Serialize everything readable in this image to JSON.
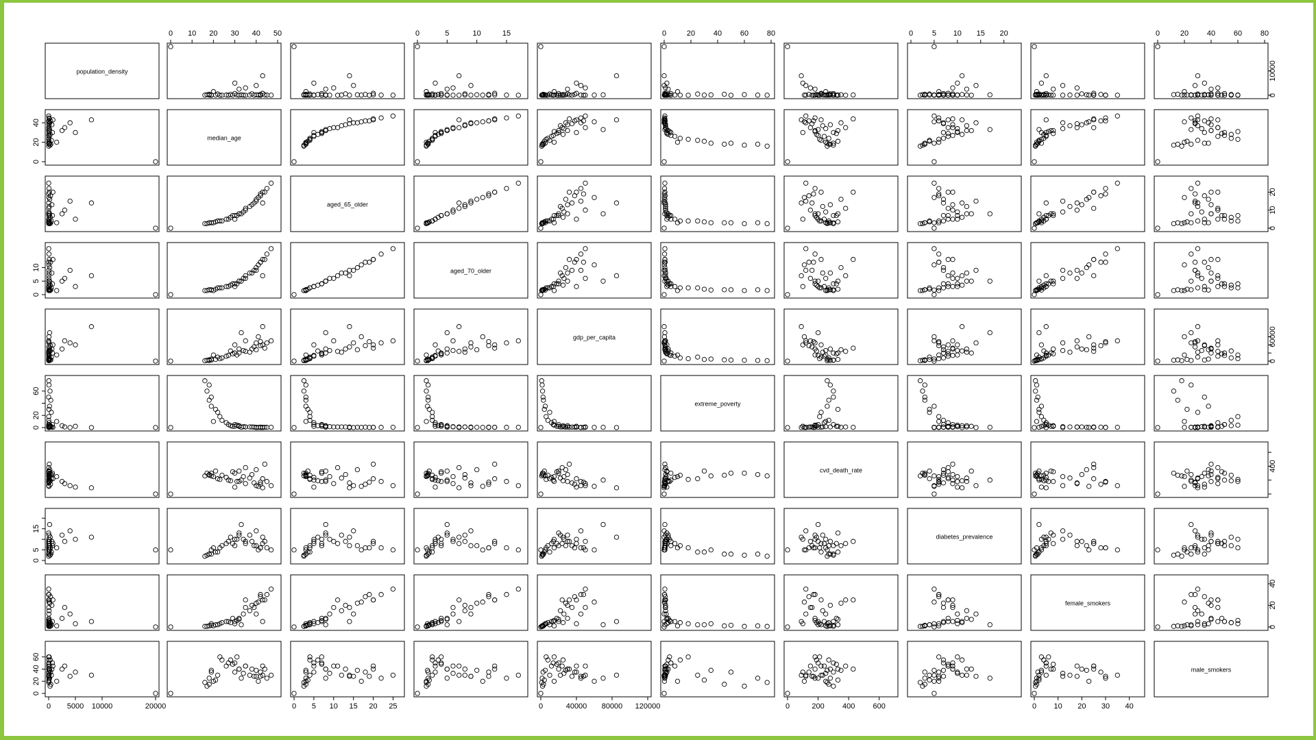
{
  "chart_data": {
    "type": "scatter",
    "variables": [
      {
        "name": "population_density",
        "label": "population_density",
        "range": [
          0,
          20000
        ],
        "ticks": [
          0,
          5000,
          10000,
          20000
        ],
        "tick_labels": [
          "0",
          "5000",
          "10000",
          "20000"
        ],
        "ticks_right": [
          0,
          10000
        ],
        "tick_labels_right": [
          "0",
          "10000"
        ],
        "ticks_left": [],
        "tick_labels_left": []
      },
      {
        "name": "median_age",
        "label": "median_age",
        "range": [
          0,
          50
        ],
        "ticks": [
          0,
          10,
          20,
          30,
          40,
          50
        ],
        "tick_labels": [
          "0",
          "10",
          "20",
          "30",
          "40",
          "50"
        ],
        "ticks_left": [
          0,
          20,
          40
        ],
        "tick_labels_left": [
          "0",
          "20",
          "40"
        ]
      },
      {
        "name": "aged_65_older",
        "label": "aged_65_older",
        "range": [
          0,
          27
        ],
        "ticks": [
          0,
          5,
          10,
          15,
          20,
          25
        ],
        "tick_labels": [
          "0",
          "5",
          "10",
          "15",
          "20",
          "25"
        ],
        "ticks_right": [
          0,
          10,
          20
        ],
        "tick_labels_right": [
          "0",
          "10",
          "20"
        ]
      },
      {
        "name": "aged_70_older",
        "label": "aged_70_older",
        "range": [
          0,
          18
        ],
        "ticks": [
          0,
          5,
          10,
          15
        ],
        "tick_labels": [
          "0",
          "5",
          "10",
          "15"
        ],
        "ticks_left": [
          0,
          5,
          10
        ],
        "tick_labels_left": [
          "0",
          "5",
          "10"
        ]
      },
      {
        "name": "gdp_per_capita",
        "label": "gdp_per_capita",
        "range": [
          0,
          120000
        ],
        "ticks": [
          0,
          40000,
          80000,
          120000
        ],
        "tick_labels": [
          "0",
          "40000",
          "80000",
          "120000"
        ],
        "ticks_right": [
          0,
          20000,
          40000,
          60000
        ],
        "tick_labels_right": [
          "0",
          "",
          "",
          "60000"
        ]
      },
      {
        "name": "extreme_poverty",
        "label": "extreme_poverty",
        "range": [
          0,
          80
        ],
        "ticks": [
          0,
          20,
          40,
          60,
          80
        ],
        "tick_labels": [
          "0",
          "20",
          "40",
          "60",
          "80"
        ],
        "ticks_left": [
          0,
          20,
          40,
          60
        ],
        "tick_labels_left": [
          "0",
          "20",
          "",
          "60"
        ]
      },
      {
        "name": "cvd_death_rate",
        "label": "cvd_death_rate",
        "range": [
          0,
          700
        ],
        "ticks": [
          0,
          200,
          400,
          600
        ],
        "tick_labels": [
          "0",
          "200",
          "400",
          "600"
        ],
        "ticks_right": [
          0,
          200,
          400,
          600
        ],
        "tick_labels_right": [
          "",
          "",
          "400",
          ""
        ]
      },
      {
        "name": "diabetes_prevalence",
        "label": "diabetes_prevalence",
        "range": [
          0,
          23
        ],
        "ticks": [
          0,
          5,
          10,
          15,
          20
        ],
        "tick_labels": [
          "0",
          "5",
          "10",
          "15",
          "20"
        ],
        "ticks_left": [
          0,
          5,
          10,
          15,
          20
        ],
        "tick_labels_left": [
          "0",
          "5",
          "",
          "15",
          ""
        ]
      },
      {
        "name": "female_smokers",
        "label": "female_smokers",
        "range": [
          0,
          45
        ],
        "ticks": [
          0,
          10,
          20,
          30,
          40
        ],
        "tick_labels": [
          "0",
          "10",
          "20",
          "30",
          "40"
        ],
        "ticks_right": [
          0,
          20,
          40
        ],
        "tick_labels_right": [
          "0",
          "20",
          "40"
        ]
      },
      {
        "name": "male_smokers",
        "label": "male_smokers",
        "range": [
          0,
          80
        ],
        "ticks": [
          0,
          20,
          40,
          60,
          80
        ],
        "tick_labels": [
          "0",
          "20",
          "40",
          "60",
          "80"
        ],
        "ticks_left": [
          0,
          20,
          40,
          60
        ],
        "tick_labels_left": [
          "0",
          "20",
          "40",
          "60"
        ]
      }
    ],
    "observations": [
      [
        20000,
        0,
        0,
        0,
        0,
        0,
        0,
        5,
        0,
        0
      ],
      [
        8000,
        43,
        14,
        7,
        85000,
        0,
        90,
        11,
        5,
        30
      ],
      [
        5000,
        30,
        5,
        3,
        40000,
        2,
        100,
        10,
        3,
        35
      ],
      [
        2500,
        32,
        8,
        5,
        30000,
        3,
        180,
        12,
        8,
        40
      ],
      [
        4000,
        40,
        15,
        9,
        45000,
        0,
        120,
        14,
        12,
        28
      ],
      [
        3000,
        35,
        10,
        6,
        50000,
        1,
        150,
        9,
        18,
        45
      ],
      [
        1500,
        20,
        3,
        1.5,
        15000,
        10,
        250,
        6,
        1,
        20
      ],
      [
        800,
        43,
        20,
        13,
        40000,
        0.5,
        220,
        8,
        25,
        45
      ],
      [
        700,
        30,
        7,
        4,
        20000,
        5,
        300,
        7,
        5,
        50
      ],
      [
        600,
        38,
        13,
        8,
        30000,
        1,
        280,
        9,
        20,
        40
      ],
      [
        500,
        22,
        4,
        2.5,
        10000,
        25,
        220,
        4,
        2,
        30
      ],
      [
        400,
        18,
        3,
        1.8,
        3000,
        45,
        270,
        3,
        1,
        15
      ],
      [
        350,
        42,
        18,
        12,
        38000,
        0.7,
        140,
        6,
        28,
        35
      ],
      [
        300,
        28,
        6,
        3.5,
        25000,
        3,
        190,
        11,
        4,
        55
      ],
      [
        250,
        17,
        2.5,
        1.5,
        2000,
        60,
        300,
        2.5,
        0.5,
        12
      ],
      [
        200,
        40,
        16,
        10,
        28000,
        0.5,
        350,
        7,
        22,
        38
      ],
      [
        180,
        33,
        8,
        5,
        70000,
        0.5,
        200,
        17,
        2,
        25
      ],
      [
        150,
        19,
        3,
        1.7,
        5000,
        35,
        260,
        5,
        3,
        38
      ],
      [
        120,
        44,
        20,
        13,
        32000,
        0.5,
        430,
        9,
        25,
        40
      ],
      [
        100,
        31,
        7,
        4,
        15000,
        4,
        180,
        10,
        6,
        60
      ],
      [
        90,
        26,
        5,
        3,
        12000,
        8,
        240,
        8,
        5,
        45
      ],
      [
        80,
        37,
        12,
        8,
        22000,
        1,
        230,
        12,
        15,
        30
      ],
      [
        70,
        18,
        3,
        1.8,
        1500,
        70,
        280,
        3,
        1,
        25
      ],
      [
        60,
        45,
        22,
        15,
        45000,
        0.3,
        180,
        6,
        30,
        25
      ],
      [
        50,
        41,
        17,
        11,
        60000,
        0.2,
        110,
        5,
        23,
        20
      ],
      [
        45,
        21,
        3.5,
        2,
        4000,
        30,
        330,
        4,
        2,
        22
      ],
      [
        40,
        29,
        7,
        4,
        18000,
        2,
        320,
        8,
        8,
        48
      ],
      [
        35,
        34,
        9,
        6,
        26000,
        1.5,
        250,
        10,
        12,
        33
      ],
      [
        30,
        24,
        4,
        2.5,
        8000,
        12,
        270,
        7,
        4,
        55
      ],
      [
        25,
        39,
        14,
        9,
        35000,
        0.8,
        160,
        7,
        18,
        28
      ],
      [
        20,
        16,
        2.5,
        1.5,
        1000,
        77,
        260,
        2,
        0.5,
        18
      ],
      [
        15,
        47,
        25,
        17,
        50000,
        0.5,
        120,
        5,
        35,
        30
      ],
      [
        12,
        27,
        5,
        3,
        14000,
        5,
        200,
        9,
        5,
        50
      ],
      [
        10,
        35,
        11,
        7,
        24000,
        1,
        380,
        8,
        25,
        45
      ],
      [
        8,
        23,
        4,
        2.5,
        6000,
        18,
        210,
        6,
        3,
        60
      ],
      [
        5,
        42,
        19,
        12,
        48000,
        0.2,
        170,
        6,
        30,
        28
      ],
      [
        3,
        19,
        3,
        1.8,
        2500,
        50,
        300,
        3,
        1.5,
        35
      ],
      [
        2,
        32,
        8,
        5,
        20000,
        2,
        330,
        13,
        7,
        40
      ]
    ]
  }
}
